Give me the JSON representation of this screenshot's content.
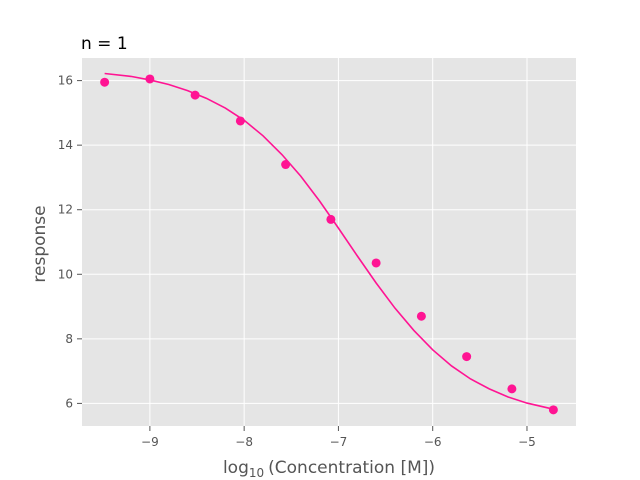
{
  "chart_data": {
    "type": "scatter",
    "title": "n = 1",
    "xlabel": {
      "prefix": "log",
      "subscript": "10",
      "suffix": "(Concentration [M])"
    },
    "ylabel": "response",
    "xlim": [
      -9.72,
      -4.48
    ],
    "ylim": [
      5.3,
      16.7
    ],
    "x_ticks": [
      -9,
      -8,
      -7,
      -6,
      -5
    ],
    "x_tick_labels": [
      "−9",
      "−8",
      "−7",
      "−6",
      "−5"
    ],
    "y_ticks": [
      6,
      8,
      10,
      12,
      14,
      16
    ],
    "y_tick_labels": [
      "6",
      "8",
      "10",
      "12",
      "14",
      "16"
    ],
    "grid": true,
    "legend": "none",
    "colors": {
      "series": "#ff1493",
      "background": "#e5e5e5",
      "grid": "#ffffff",
      "text": "#555555",
      "title": "#000000"
    },
    "series": [
      {
        "type": "scatter",
        "x": [
          -9.48,
          -9.0,
          -8.52,
          -8.04,
          -7.56,
          -7.08,
          -6.6,
          -6.12,
          -5.64,
          -5.16,
          -4.72
        ],
        "y": [
          15.95,
          16.05,
          15.55,
          14.75,
          13.4,
          11.7,
          10.35,
          8.7,
          7.45,
          6.45,
          5.8
        ]
      },
      {
        "type": "line",
        "x": [
          -9.48,
          -9.2,
          -9.0,
          -8.8,
          -8.6,
          -8.4,
          -8.2,
          -8.0,
          -7.8,
          -7.6,
          -7.4,
          -7.2,
          -7.0,
          -6.8,
          -6.6,
          -6.4,
          -6.2,
          -6.0,
          -5.8,
          -5.6,
          -5.4,
          -5.2,
          -5.0,
          -4.72
        ],
        "y": [
          16.22,
          16.13,
          16.02,
          15.88,
          15.69,
          15.45,
          15.15,
          14.77,
          14.29,
          13.71,
          13.04,
          12.27,
          11.43,
          10.57,
          9.73,
          8.95,
          8.26,
          7.66,
          7.16,
          6.76,
          6.45,
          6.2,
          6.01,
          5.82
        ]
      }
    ]
  }
}
